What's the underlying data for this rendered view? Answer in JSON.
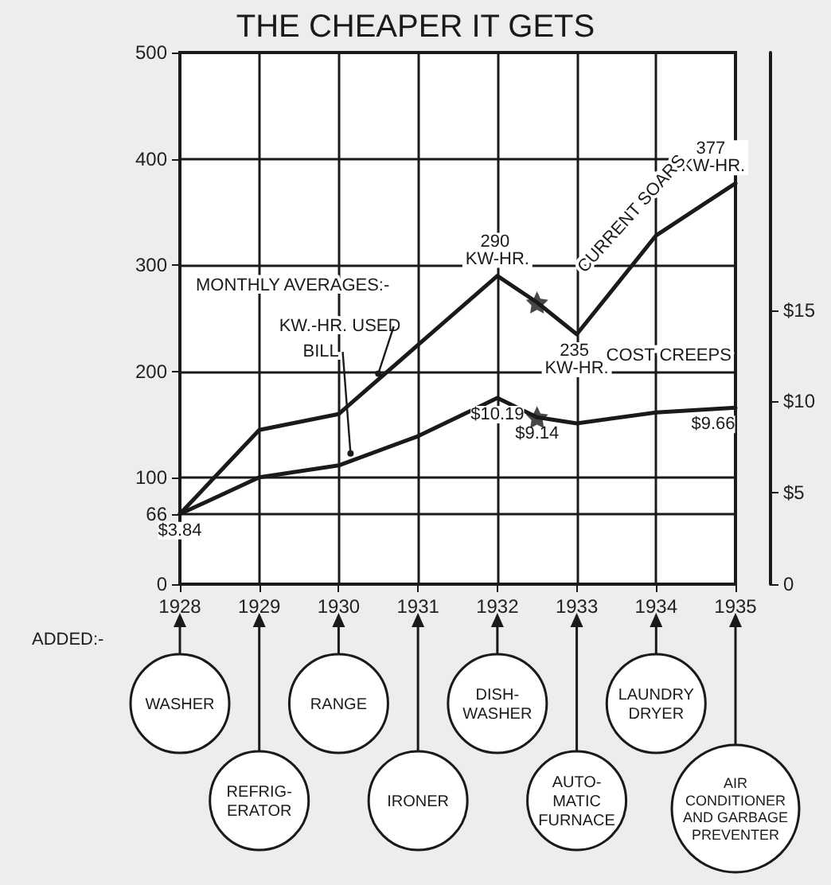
{
  "chart_data": {
    "type": "line",
    "title": "THE CHEAPER IT GETS",
    "xlim": [
      1928,
      1935
    ],
    "xticks": [
      1928,
      1929,
      1930,
      1931,
      1932,
      1933,
      1934,
      1935
    ],
    "ylim": [
      0,
      500
    ],
    "yticks": [
      0,
      66,
      100,
      200,
      300,
      400,
      500
    ],
    "y2lim": [
      0,
      29.1
    ],
    "y2ticks": [
      {
        "value": 0,
        "label": "0"
      },
      {
        "value": 5,
        "label": "$5"
      },
      {
        "value": 10,
        "label": "$10"
      },
      {
        "value": 15,
        "label": "$15"
      }
    ],
    "grid": true,
    "series": [
      {
        "name": "KW.-HR. USED",
        "color": "#1a1a1a",
        "x": [
          1928,
          1929,
          1930,
          1931,
          1932,
          1932.5,
          1933,
          1934,
          1935
        ],
        "values": [
          66,
          145,
          160,
          225,
          290,
          265,
          235,
          328,
          377
        ],
        "value_labels": [
          null,
          null,
          null,
          null,
          "290 KW-HR.",
          null,
          "235 KW-HR.",
          null,
          "377 KW-HR."
        ]
      },
      {
        "name": "BILL",
        "axis": "y2",
        "color": "#1a1a1a",
        "x": [
          1928,
          1929,
          1930,
          1931,
          1932,
          1932.5,
          1933,
          1934,
          1935
        ],
        "values": [
          3.84,
          5.85,
          6.5,
          8.1,
          10.19,
          9.14,
          8.8,
          9.4,
          9.66
        ],
        "value_labels": [
          "$3.84",
          null,
          null,
          null,
          "$10.19",
          "$9.14",
          null,
          null,
          "$9.66"
        ]
      },
      {
        "type": "scatter",
        "marker": "star",
        "color": "#1a1a1a",
        "x": [
          1932.5
        ],
        "values": [
          265
        ]
      },
      {
        "type": "scatter",
        "marker": "star",
        "axis": "y2",
        "color": "#1a1a1a",
        "x": [
          1932.5
        ],
        "values": [
          9.14
        ]
      }
    ],
    "annotations": [
      "MONTHLY AVERAGES:-",
      "ADDED:-",
      "CURRENT SOARS",
      "COST CREEPS",
      "WASHER",
      "REFRIG-\nERATOR",
      "RANGE",
      "IRONER",
      "DISH-\nWASHER",
      "AUTO-\nMATIC\nFURNACE",
      "LAUNDRY\nDRYER",
      "AIR\nCONDITIONER\nAND GARBAGE\nPREVENTER"
    ]
  }
}
